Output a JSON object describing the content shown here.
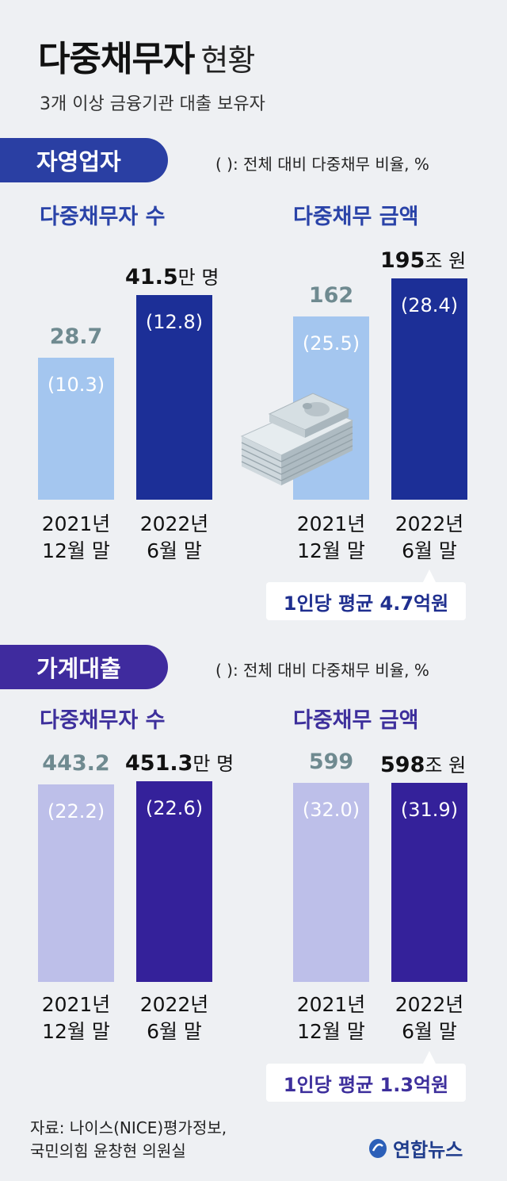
{
  "header": {
    "title_bold": "다중채무자",
    "title_normal": "현황",
    "subtitle": "3개 이상 금융기관 대출 보유자"
  },
  "source": {
    "line1": "자료: 나이스(NICE)평가정보,",
    "line2": "국민의힘 윤창현 의원실"
  },
  "brand": "연합뉴스",
  "chart_data": [
    {
      "type": "bar",
      "section": "자영업자",
      "note": "( ): 전체 대비 다중채무 비율, %",
      "title": "다중채무자 수",
      "categories": [
        "2021년\n12월 말",
        "2022년\n6월 말"
      ],
      "cat_lines": [
        [
          "2021년",
          "12월 말"
        ],
        [
          "2022년",
          "6월 말"
        ]
      ],
      "values": [
        28.7,
        41.5
      ],
      "value_labels": [
        "28.7",
        "41.5"
      ],
      "ratios": [
        "(10.3)",
        "(12.8)"
      ],
      "unit": "만 명",
      "ylim": [
        0,
        45
      ],
      "colors": [
        "#a4c6ef",
        "#1c2f97"
      ],
      "value_colors": [
        "#6f8a90",
        "#111111"
      ]
    },
    {
      "type": "bar",
      "section": "자영업자",
      "title": "다중채무 금액",
      "categories": [
        "2021년\n12월 말",
        "2022년\n6월 말"
      ],
      "cat_lines": [
        [
          "2021년",
          "12월 말"
        ],
        [
          "2022년",
          "6월 말"
        ]
      ],
      "values": [
        162,
        195
      ],
      "value_labels": [
        "162",
        "195"
      ],
      "ratios": [
        "(25.5)",
        "(28.4)"
      ],
      "unit": "조 원",
      "ylim": [
        0,
        210
      ],
      "colors": [
        "#a4c6ef",
        "#1c2f97"
      ],
      "value_colors": [
        "#6f8a90",
        "#111111"
      ],
      "callout": "1인당 평균 4.7억원"
    },
    {
      "type": "bar",
      "section": "가계대출",
      "note": "( ): 전체 대비 다중채무 비율, %",
      "title": "다중채무자 수",
      "categories": [
        "2021년\n12월 말",
        "2022년\n6월 말"
      ],
      "cat_lines": [
        [
          "2021년",
          "12월 말"
        ],
        [
          "2022년",
          "6월 말"
        ]
      ],
      "values": [
        443.2,
        451.3
      ],
      "value_labels": [
        "443.2",
        "451.3"
      ],
      "ratios": [
        "(22.2)",
        "(22.6)"
      ],
      "unit": "만 명",
      "ylim": [
        0,
        460
      ],
      "colors": [
        "#bdbfe9",
        "#34219a"
      ],
      "value_colors": [
        "#6f8a90",
        "#111111"
      ]
    },
    {
      "type": "bar",
      "section": "가계대출",
      "title": "다중채무 금액",
      "categories": [
        "2021년\n12월 말",
        "2022년\n6월 말"
      ],
      "cat_lines": [
        [
          "2021년",
          "12월 말"
        ],
        [
          "2022년",
          "6월 말"
        ]
      ],
      "values": [
        599,
        598
      ],
      "value_labels": [
        "599",
        "598"
      ],
      "ratios": [
        "(32.0)",
        "(31.9)"
      ],
      "unit": "조 원",
      "ylim": [
        0,
        610
      ],
      "colors": [
        "#bdbfe9",
        "#34219a"
      ],
      "value_colors": [
        "#6f8a90",
        "#111111"
      ],
      "callout": "1인당 평균 1.3억원"
    }
  ]
}
